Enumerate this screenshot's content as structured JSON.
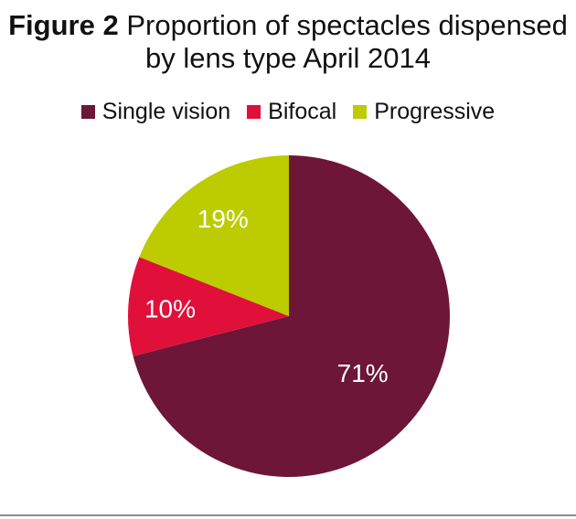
{
  "title": {
    "figure_label": "Figure 2",
    "line1_rest": "Proportion of spectacles dispensed",
    "line2": "by lens type April 2014"
  },
  "chart_data": {
    "type": "pie",
    "title": "Figure 2 Proportion of spectacles dispensed by lens type April 2014",
    "legend_position": "top",
    "start": "12 o'clock, clockwise",
    "slices": [
      {
        "name": "Single vision",
        "value": 71,
        "label": "71%",
        "color": "#6d1637"
      },
      {
        "name": "Bifocal",
        "value": 10,
        "label": "10%",
        "color": "#e0103a"
      },
      {
        "name": "Progressive",
        "value": 19,
        "label": "19%",
        "color": "#bccc00"
      }
    ]
  }
}
